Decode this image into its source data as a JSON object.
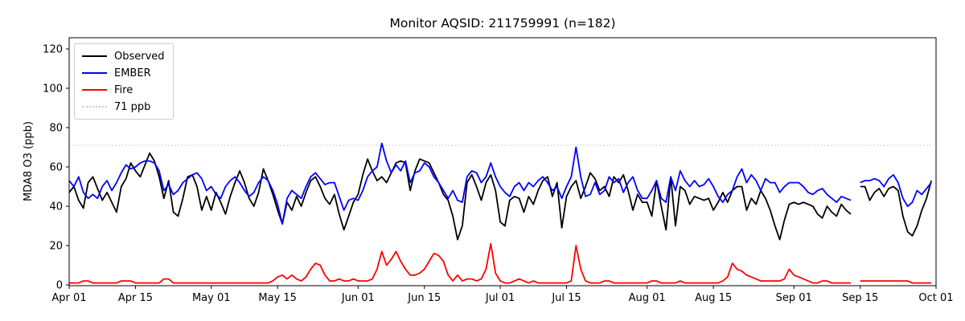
{
  "figure": {
    "background": "#ffffff"
  },
  "chart_data": {
    "type": "line",
    "title": "Monitor AQSID: 211759991 (n=182)",
    "xlabel": "",
    "ylabel": "MDA8 O3 (ppb)",
    "ylim": [
      0,
      126
    ],
    "yticks": [
      0,
      20,
      40,
      60,
      80,
      100,
      120
    ],
    "xtick_labels": [
      "Apr 01",
      "Apr 15",
      "May 01",
      "May 15",
      "Jun 01",
      "Jun 15",
      "Jul 01",
      "Jul 15",
      "Aug 01",
      "Aug 15",
      "Sep 01",
      "Sep 15",
      "Oct 01"
    ],
    "xtick_day_index": [
      0,
      14,
      30,
      44,
      61,
      75,
      91,
      105,
      122,
      136,
      153,
      167,
      183
    ],
    "x_start": "Apr 01",
    "x_end": "Oct 01",
    "n_days": 183,
    "n_points": 182,
    "missing_day": "Sep 14",
    "grid": false,
    "legend_position": "upper left",
    "reference_line": {
      "label": "71 ppb",
      "value": 71,
      "style": "dotted",
      "color": "#c8c8c8"
    },
    "legend_items": [
      {
        "label": "Observed",
        "color": "#000000",
        "line_style": "solid"
      },
      {
        "label": "EMBER",
        "color": "#0000ff",
        "line_style": "solid"
      },
      {
        "label": "Fire",
        "color": "#ff0000",
        "line_style": "solid"
      },
      {
        "label": "71 ppb",
        "color": "#c8c8c8",
        "line_style": "dotted"
      }
    ],
    "series": [
      {
        "name": "Observed",
        "color": "#000000",
        "values": [
          47,
          50,
          43,
          39,
          52,
          55,
          49,
          43,
          47,
          42,
          37,
          50,
          54,
          62,
          58,
          55,
          61,
          67,
          63,
          55,
          44,
          53,
          37,
          35,
          44,
          55,
          56,
          50,
          38,
          45,
          38,
          47,
          42,
          36,
          45,
          52,
          58,
          52,
          44,
          40,
          47,
          59,
          53,
          46,
          38,
          31,
          42,
          38,
          45,
          40,
          47,
          53,
          55,
          50,
          44,
          41,
          46,
          36,
          28,
          35,
          42,
          46,
          56,
          64,
          58,
          53,
          55,
          52,
          57,
          62,
          63,
          62,
          48,
          58,
          64,
          63,
          62,
          57,
          52,
          46,
          43,
          35,
          23,
          30,
          52,
          56,
          50,
          43,
          52,
          56,
          48,
          32,
          30,
          43,
          45,
          44,
          37,
          45,
          41,
          48,
          53,
          55,
          45,
          52,
          29,
          45,
          50,
          53,
          44,
          50,
          57,
          54,
          48,
          50,
          45,
          55,
          52,
          56,
          48,
          38,
          46,
          42,
          42,
          35,
          53,
          40,
          28,
          55,
          30,
          50,
          48,
          41,
          45,
          44,
          43,
          44,
          38,
          42,
          47,
          42,
          48,
          50,
          50,
          38,
          44,
          41,
          48,
          44,
          38,
          30,
          23,
          33,
          41,
          42,
          41,
          42,
          41,
          40,
          36,
          34,
          40,
          37,
          35,
          41,
          38,
          36,
          null,
          50,
          50,
          43,
          47,
          49,
          45,
          49,
          50,
          48,
          35,
          27,
          25,
          30,
          38,
          44,
          53
        ]
      },
      {
        "name": "EMBER",
        "color": "#0000ff",
        "values": [
          53,
          50,
          55,
          47,
          44,
          46,
          44,
          50,
          53,
          48,
          52,
          57,
          61,
          59,
          60,
          62,
          63,
          63,
          62,
          58,
          48,
          51,
          46,
          48,
          52,
          54,
          56,
          57,
          54,
          48,
          50,
          46,
          44,
          50,
          53,
          55,
          52,
          48,
          45,
          47,
          52,
          55,
          53,
          48,
          41,
          31,
          44,
          48,
          46,
          44,
          50,
          55,
          57,
          54,
          51,
          52,
          52,
          45,
          38,
          43,
          44,
          43,
          48,
          55,
          58,
          60,
          72,
          63,
          57,
          61,
          58,
          63,
          52,
          57,
          58,
          62,
          60,
          55,
          52,
          48,
          44,
          48,
          43,
          42,
          55,
          58,
          57,
          52,
          55,
          62,
          55,
          50,
          47,
          45,
          50,
          52,
          48,
          52,
          50,
          53,
          55,
          52,
          48,
          50,
          44,
          50,
          55,
          70,
          55,
          45,
          46,
          52,
          46,
          48,
          55,
          52,
          54,
          47,
          52,
          55,
          48,
          44,
          44,
          48,
          53,
          44,
          42,
          55,
          48,
          58,
          53,
          50,
          53,
          50,
          51,
          54,
          50,
          45,
          42,
          46,
          48,
          55,
          59,
          52,
          56,
          53,
          48,
          54,
          52,
          52,
          47,
          50,
          52,
          52,
          52,
          50,
          47,
          46,
          48,
          49,
          46,
          44,
          42,
          45,
          44,
          43,
          null,
          52,
          53,
          53,
          54,
          53,
          50,
          54,
          56,
          52,
          44,
          40,
          42,
          48,
          46,
          49,
          52
        ]
      },
      {
        "name": "Fire",
        "color": "#ff0000",
        "values": [
          1,
          1,
          1,
          2,
          2,
          1,
          1,
          1,
          1,
          1,
          1,
          2,
          2,
          2,
          1,
          1,
          1,
          1,
          1,
          1,
          3,
          3,
          1,
          1,
          1,
          1,
          1,
          1,
          1,
          1,
          1,
          1,
          1,
          1,
          1,
          1,
          1,
          1,
          1,
          1,
          1,
          1,
          1,
          2,
          4,
          5,
          3,
          5,
          3,
          2,
          4,
          8,
          11,
          10,
          5,
          2,
          2,
          3,
          2,
          2,
          3,
          2,
          2,
          2,
          3,
          8,
          17,
          10,
          13,
          17,
          12,
          8,
          5,
          5,
          6,
          8,
          12,
          16,
          15,
          12,
          5,
          2,
          5,
          2,
          3,
          3,
          2,
          3,
          8,
          21,
          6,
          2,
          1,
          1,
          2,
          3,
          2,
          1,
          2,
          1,
          1,
          1,
          1,
          1,
          1,
          1,
          2,
          20,
          8,
          2,
          1,
          1,
          1,
          2,
          2,
          1,
          1,
          1,
          1,
          1,
          1,
          1,
          1,
          2,
          2,
          1,
          1,
          1,
          1,
          2,
          1,
          1,
          1,
          1,
          1,
          1,
          1,
          1,
          2,
          4,
          11,
          8,
          7,
          5,
          4,
          3,
          2,
          2,
          2,
          2,
          2,
          3,
          8,
          5,
          4,
          3,
          2,
          1,
          1,
          2,
          2,
          1,
          1,
          1,
          1,
          1,
          null,
          2,
          2,
          2,
          2,
          2,
          2,
          2,
          2,
          2,
          2,
          2,
          1,
          1,
          1,
          1,
          1
        ]
      }
    ]
  }
}
